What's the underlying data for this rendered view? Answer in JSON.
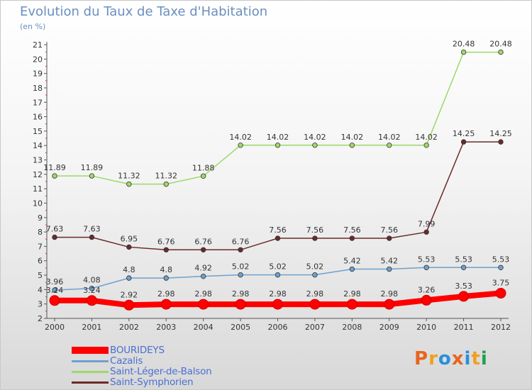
{
  "title": "Evolution du Taux de Taxe d'Habitation",
  "subtitle": "(en %)",
  "logo": {
    "text": "Proxiti",
    "colors": [
      "#e8641e",
      "#f0a020",
      "#2a8fd8",
      "#e8641e",
      "#2a8fd8",
      "#f0a020",
      "#20a050"
    ]
  },
  "chart_data": {
    "type": "line",
    "categories": [
      "2000",
      "2001",
      "2002",
      "2003",
      "2004",
      "2005",
      "2006",
      "2007",
      "2008",
      "2009",
      "2010",
      "2011",
      "2012"
    ],
    "ylim": [
      2,
      21
    ],
    "yticks": [
      "2",
      "3",
      "4",
      "5",
      "6",
      "7",
      "8",
      "9",
      "10",
      "11",
      "12",
      "13",
      "14",
      "15",
      "16",
      "17",
      "18",
      "19",
      "20",
      "21"
    ],
    "grid": false,
    "legend_position": "bottom-left",
    "series": [
      {
        "name": "BOURIDEYS",
        "color": "#ff0000",
        "values": [
          3.24,
          3.24,
          2.92,
          2.98,
          2.98,
          2.98,
          2.98,
          2.98,
          2.98,
          2.98,
          3.26,
          3.53,
          3.75
        ],
        "labels": [
          "3.24",
          "3.24",
          "2.92",
          "2.98",
          "2.98",
          "2.98",
          "2.98",
          "2.98",
          "2.98",
          "2.98",
          "3.26",
          "3.53",
          "3.75"
        ]
      },
      {
        "name": "Cazalis",
        "color": "#6fa0cc",
        "values": [
          3.96,
          4.08,
          4.8,
          4.8,
          4.92,
          5.02,
          5.02,
          5.02,
          5.42,
          5.42,
          5.53,
          5.53,
          5.53
        ],
        "labels": [
          "3.96",
          "4.08",
          "4.8",
          "4.8",
          "4.92",
          "5.02",
          "5.02",
          "5.02",
          "5.42",
          "5.42",
          "5.53",
          "5.53",
          "5.53"
        ]
      },
      {
        "name": "Saint-Léger-de-Balson",
        "color": "#9ed86a",
        "values": [
          11.89,
          11.89,
          11.32,
          11.32,
          11.88,
          14.02,
          14.02,
          14.02,
          14.02,
          14.02,
          14.02,
          20.48,
          20.48
        ],
        "labels": [
          "11.89",
          "11.89",
          "11.32",
          "11.32",
          "11.88",
          "14.02",
          "14.02",
          "14.02",
          "14.02",
          "14.02",
          "14.02",
          "20.48",
          "20.48"
        ]
      },
      {
        "name": "Saint-Symphorien",
        "color": "#6b2a2a",
        "values": [
          7.63,
          7.63,
          6.95,
          6.76,
          6.76,
          6.76,
          7.56,
          7.56,
          7.56,
          7.56,
          7.99,
          14.25,
          14.25
        ],
        "labels": [
          "7.63",
          "7.63",
          "6.95",
          "6.76",
          "6.76",
          "6.76",
          "7.56",
          "7.56",
          "7.56",
          "7.56",
          "7.99",
          "14.25",
          "14.25"
        ]
      }
    ]
  }
}
